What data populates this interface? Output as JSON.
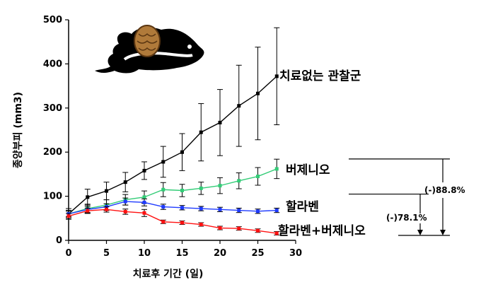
{
  "chart_data": {
    "type": "line",
    "xlabel": "치료후 기간 (일)",
    "ylabel": "종양부피 (mm3)",
    "xlim": [
      0,
      30
    ],
    "ylim": [
      0,
      500
    ],
    "xticks": [
      0,
      5,
      10,
      15,
      20,
      25,
      30
    ],
    "yticks": [
      0,
      100,
      200,
      300,
      400,
      500
    ],
    "grid": false,
    "series": [
      {
        "name": "치료없는 관찰군",
        "color": "#000000",
        "x": [
          0,
          2.5,
          5,
          7.5,
          10,
          12.5,
          15,
          17.5,
          20,
          22.5,
          25,
          27.5
        ],
        "y": [
          60,
          98,
          112,
          132,
          158,
          178,
          200,
          245,
          267,
          305,
          333,
          372
        ],
        "err": [
          12,
          18,
          20,
          22,
          20,
          35,
          42,
          65,
          75,
          92,
          105,
          110
        ]
      },
      {
        "name": "버제니오",
        "color": "#33cc77",
        "x": [
          0,
          2.5,
          5,
          7.5,
          10,
          12.5,
          15,
          17.5,
          20,
          22.5,
          25,
          27.5
        ],
        "y": [
          60,
          72,
          80,
          92,
          98,
          115,
          113,
          118,
          124,
          135,
          145,
          162
        ],
        "err": [
          8,
          10,
          12,
          12,
          14,
          16,
          14,
          14,
          18,
          18,
          20,
          22
        ]
      },
      {
        "name": "할라벤",
        "color": "#1f3bff",
        "x": [
          0,
          2.5,
          5,
          7.5,
          10,
          12.5,
          15,
          17.5,
          20,
          22.5,
          25,
          27.5
        ],
        "y": [
          60,
          70,
          76,
          88,
          86,
          76,
          74,
          72,
          70,
          68,
          66,
          68
        ],
        "err": [
          6,
          7,
          7,
          8,
          8,
          6,
          5,
          5,
          5,
          5,
          5,
          5
        ]
      },
      {
        "name": "할라벤+버제니오",
        "color": "#ff1111",
        "x": [
          0,
          2.5,
          5,
          7.5,
          10,
          12.5,
          15,
          17.5,
          20,
          22.5,
          25,
          27.5
        ],
        "y": [
          55,
          67,
          70,
          65,
          62,
          42,
          40,
          36,
          28,
          27,
          22,
          16
        ],
        "err": [
          6,
          6,
          6,
          6,
          8,
          4,
          4,
          4,
          4,
          4,
          4,
          4
        ]
      }
    ],
    "annotations": [
      {
        "text": "(-)88.8%",
        "from_series": "버제니오",
        "to_series": "할라벤+버제니오"
      },
      {
        "text": "(-)78.1%",
        "from_series": "할라벤",
        "to_series": "할라벤+버제니오"
      }
    ]
  }
}
